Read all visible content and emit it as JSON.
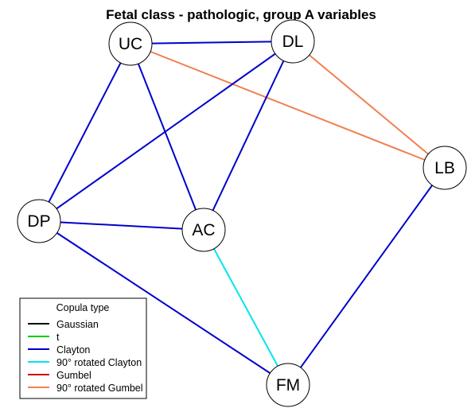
{
  "title": "Fetal class - pathologic, group A variables",
  "colors": {
    "gaussian": "#000000",
    "t": "#00CD00",
    "clayton": "#0000CD",
    "rot90_clayton": "#00E5EE",
    "gumbel": "#CD0000",
    "rot90_gumbel": "#F08050"
  },
  "nodes": [
    {
      "id": "UC",
      "label": "UC"
    },
    {
      "id": "DL",
      "label": "DL"
    },
    {
      "id": "LB",
      "label": "LB"
    },
    {
      "id": "DP",
      "label": "DP"
    },
    {
      "id": "AC",
      "label": "AC"
    },
    {
      "id": "FM",
      "label": "FM"
    }
  ],
  "edges": [
    {
      "from": "UC",
      "to": "DL",
      "type": "clayton"
    },
    {
      "from": "UC",
      "to": "DP",
      "type": "clayton"
    },
    {
      "from": "UC",
      "to": "AC",
      "type": "clayton"
    },
    {
      "from": "UC",
      "to": "LB",
      "type": "rot90_gumbel"
    },
    {
      "from": "DL",
      "to": "DP",
      "type": "clayton"
    },
    {
      "from": "DL",
      "to": "AC",
      "type": "clayton"
    },
    {
      "from": "DL",
      "to": "LB",
      "type": "rot90_gumbel"
    },
    {
      "from": "DP",
      "to": "AC",
      "type": "clayton"
    },
    {
      "from": "DP",
      "to": "FM",
      "type": "clayton"
    },
    {
      "from": "AC",
      "to": "FM",
      "type": "rot90_clayton"
    },
    {
      "from": "LB",
      "to": "FM",
      "type": "clayton"
    }
  ],
  "legend": {
    "title": "Copula type",
    "items": [
      {
        "label": "Gaussian",
        "type": "gaussian"
      },
      {
        "label": "t",
        "type": "t"
      },
      {
        "label": "Clayton",
        "type": "clayton"
      },
      {
        "label": "90° rotated Clayton",
        "type": "rot90_clayton"
      },
      {
        "label": "Gumbel",
        "type": "gumbel"
      },
      {
        "label": "90° rotated Gumbel",
        "type": "rot90_gumbel"
      }
    ]
  }
}
